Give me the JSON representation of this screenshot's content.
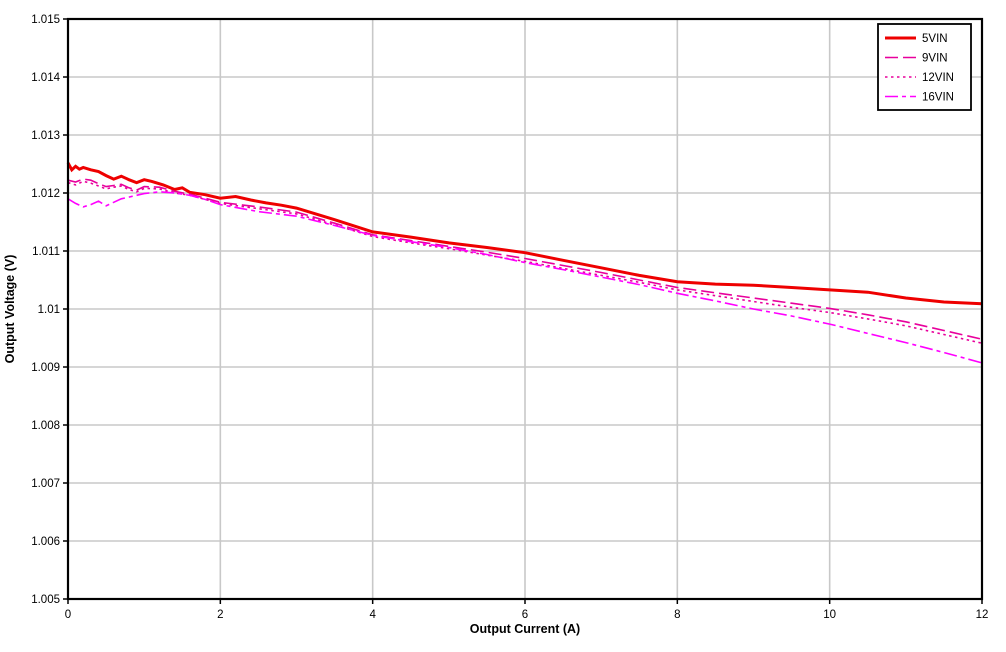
{
  "chart_data": {
    "type": "line",
    "title": "",
    "xlabel": "Output Current (A)",
    "ylabel": "Output Voltage (V)",
    "xlim": [
      0,
      12
    ],
    "ylim": [
      1.005,
      1.015
    ],
    "x_ticks": [
      0,
      2,
      4,
      6,
      8,
      10,
      12
    ],
    "x_tick_labels": [
      "0",
      "2",
      "4",
      "6",
      "8",
      "10",
      "12"
    ],
    "y_ticks": [
      1.005,
      1.006,
      1.007,
      1.008,
      1.009,
      1.01,
      1.011,
      1.012,
      1.013,
      1.014,
      1.015
    ],
    "y_tick_labels": [
      "1.005",
      "1.006",
      "1.007",
      "1.008",
      "1.009",
      "1.01",
      "1.011",
      "1.012",
      "1.013",
      "1.014",
      "1.015"
    ],
    "grid": true,
    "grid_color": "#c8c8c8",
    "border_color": "#000000",
    "legend_position": "top-right",
    "series": [
      {
        "name": "5VIN",
        "color": "#ee0000",
        "width": 3,
        "dash": "",
        "x": [
          0,
          0.05,
          0.1,
          0.15,
          0.2,
          0.3,
          0.4,
          0.5,
          0.6,
          0.7,
          0.8,
          0.9,
          1.0,
          1.1,
          1.25,
          1.4,
          1.5,
          1.6,
          1.8,
          2.0,
          2.2,
          2.4,
          2.6,
          2.8,
          3.0,
          3.5,
          4.0,
          4.5,
          5.0,
          5.5,
          6.0,
          6.5,
          7.0,
          7.5,
          8.0,
          8.5,
          9.0,
          9.5,
          10.0,
          10.5,
          11.0,
          11.5,
          12.0
        ],
        "y": [
          1.01252,
          1.0124,
          1.01246,
          1.01241,
          1.01244,
          1.0124,
          1.01237,
          1.0123,
          1.01224,
          1.01229,
          1.01223,
          1.01218,
          1.01223,
          1.0122,
          1.01214,
          1.01206,
          1.01209,
          1.01201,
          1.01197,
          1.01191,
          1.01194,
          1.01188,
          1.01183,
          1.01179,
          1.01174,
          1.01154,
          1.01133,
          1.01124,
          1.01114,
          1.01106,
          1.01097,
          1.01084,
          1.01071,
          1.01058,
          1.01047,
          1.01043,
          1.01041,
          1.01037,
          1.01033,
          1.01029,
          1.01019,
          1.01012,
          1.01009
        ]
      },
      {
        "name": "9VIN",
        "color": "#e8009c",
        "width": 1.6,
        "dash": "13 5",
        "x": [
          0,
          0.1,
          0.2,
          0.3,
          0.4,
          0.5,
          0.6,
          0.7,
          0.8,
          0.9,
          1.0,
          1.2,
          1.4,
          1.6,
          1.8,
          2.0,
          2.5,
          3.0,
          3.5,
          4.0,
          4.5,
          5.0,
          5.5,
          6.0,
          6.5,
          7.0,
          7.5,
          8.0,
          8.5,
          9.0,
          9.5,
          10.0,
          10.5,
          11.0,
          11.5,
          12.0
        ],
        "y": [
          1.01222,
          1.01219,
          1.01224,
          1.01222,
          1.01216,
          1.01211,
          1.01213,
          1.01215,
          1.01209,
          1.01205,
          1.01211,
          1.0121,
          1.01203,
          1.01198,
          1.01191,
          1.01184,
          1.01176,
          1.01167,
          1.01148,
          1.01128,
          1.01118,
          1.01108,
          1.01098,
          1.01087,
          1.01075,
          1.01063,
          1.0105,
          1.01037,
          1.01028,
          1.01019,
          1.0101,
          1.01001,
          1.0099,
          1.00978,
          1.00963,
          1.00948
        ]
      },
      {
        "name": "12VIN",
        "color": "#e8009c",
        "width": 1.6,
        "dash": "2.5 3.5",
        "x": [
          0,
          0.1,
          0.2,
          0.3,
          0.4,
          0.5,
          0.6,
          0.7,
          0.8,
          0.9,
          1.0,
          1.2,
          1.4,
          1.6,
          1.8,
          2.0,
          2.5,
          3.0,
          3.5,
          4.0,
          4.5,
          5.0,
          5.5,
          6.0,
          6.5,
          7.0,
          7.5,
          8.0,
          8.5,
          9.0,
          9.5,
          10.0,
          10.5,
          11.0,
          11.5,
          12.0
        ],
        "y": [
          1.01218,
          1.01214,
          1.0122,
          1.01217,
          1.01212,
          1.01207,
          1.0121,
          1.01212,
          1.01206,
          1.01202,
          1.01208,
          1.01207,
          1.012,
          1.01196,
          1.01189,
          1.01182,
          1.01173,
          1.01164,
          1.01145,
          1.01125,
          1.01114,
          1.01104,
          1.01093,
          1.01082,
          1.0107,
          1.01058,
          1.01046,
          1.01033,
          1.01023,
          1.01013,
          1.01003,
          1.00994,
          1.00983,
          1.00971,
          1.00956,
          1.00941
        ]
      },
      {
        "name": "16VIN",
        "color": "#ff00ff",
        "width": 1.6,
        "dash": "13 4 4 4",
        "x": [
          0,
          0.1,
          0.2,
          0.3,
          0.4,
          0.5,
          0.6,
          0.7,
          0.8,
          0.9,
          1.0,
          1.2,
          1.4,
          1.6,
          1.8,
          2.0,
          2.5,
          3.0,
          3.5,
          4.0,
          4.5,
          5.0,
          5.5,
          6.0,
          6.5,
          7.0,
          7.5,
          8.0,
          8.5,
          9.0,
          9.5,
          10.0,
          10.5,
          11.0,
          11.5,
          12.0
        ],
        "y": [
          1.0119,
          1.01182,
          1.01176,
          1.0118,
          1.01186,
          1.01178,
          1.01184,
          1.0119,
          1.01193,
          1.01196,
          1.01199,
          1.01202,
          1.012,
          1.01196,
          1.01189,
          1.0118,
          1.01168,
          1.0116,
          1.01144,
          1.01127,
          1.01116,
          1.01106,
          1.01094,
          1.0108,
          1.01068,
          1.01055,
          1.01042,
          1.01027,
          1.01014,
          1.01,
          1.00988,
          1.00974,
          1.00958,
          1.00942,
          1.00925,
          1.00907
        ]
      }
    ],
    "legend_entries": [
      "5VIN",
      "9VIN",
      "12VIN",
      "16VIN"
    ]
  }
}
